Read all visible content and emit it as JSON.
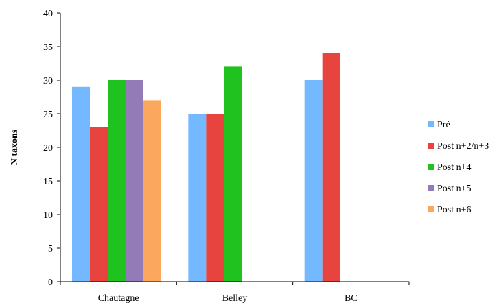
{
  "chart_data": {
    "type": "bar",
    "title": "",
    "xlabel": "",
    "ylabel": "N taxons",
    "ylim": [
      0,
      40
    ],
    "yticks": [
      0,
      5,
      10,
      15,
      20,
      25,
      30,
      35,
      40
    ],
    "grid": false,
    "legend_position": "right",
    "categories": [
      "Chautagne",
      "Belley",
      "BC"
    ],
    "series": [
      {
        "name": "Pré",
        "color": "#74b9ff",
        "values": [
          29,
          25,
          30
        ]
      },
      {
        "name": "Post n+2/n+3",
        "color": "#e8443f",
        "values": [
          23,
          25,
          34
        ]
      },
      {
        "name": "Post n+4",
        "color": "#1fc21f",
        "values": [
          30,
          32,
          null
        ]
      },
      {
        "name": "Post n+5",
        "color": "#937bb8",
        "values": [
          30,
          null,
          null
        ]
      },
      {
        "name": "Post n+6",
        "color": "#fba85e",
        "values": [
          27,
          null,
          null
        ]
      }
    ]
  }
}
